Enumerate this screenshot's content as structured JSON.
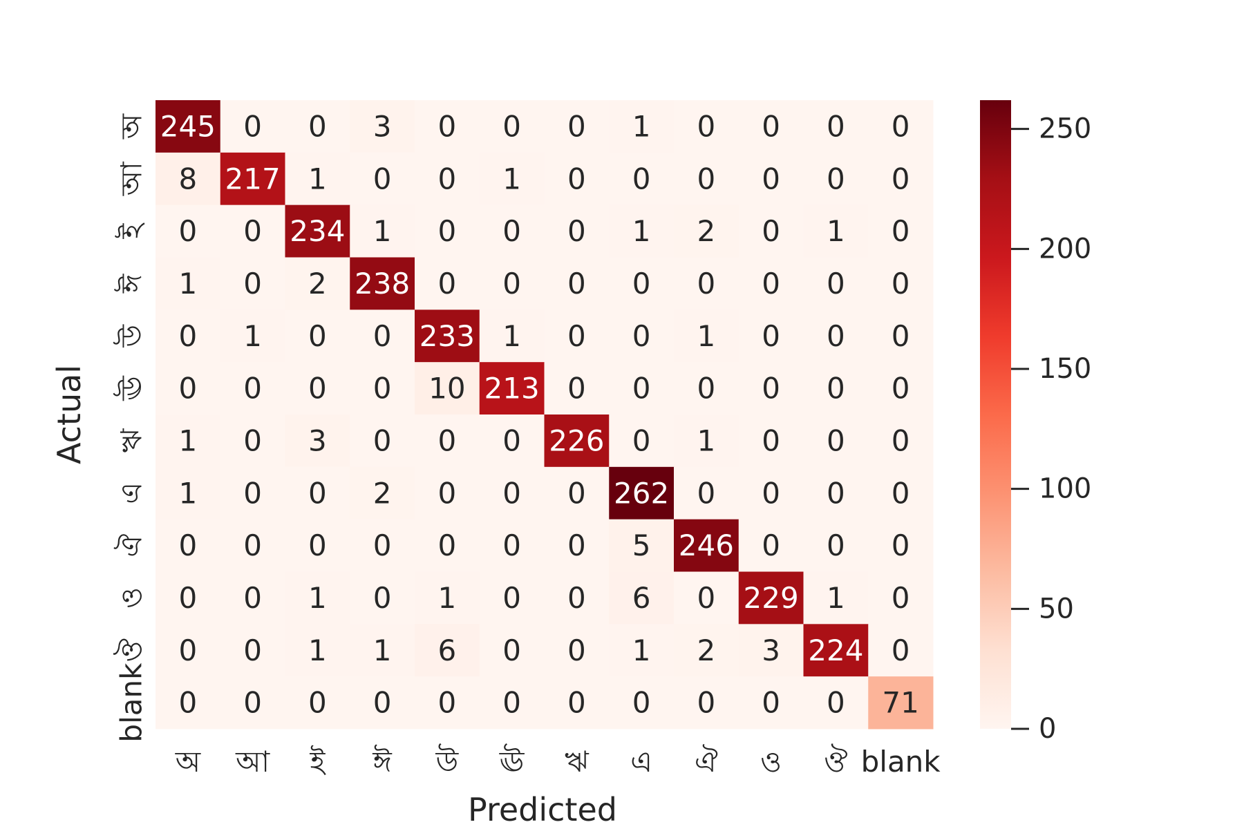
{
  "chart_data": {
    "type": "heatmap",
    "title": "",
    "xlabel": "Predicted",
    "ylabel": "Actual",
    "x_categories": [
      "অ",
      "আ",
      "ই",
      "ঈ",
      "উ",
      "ঊ",
      "ঋ",
      "এ",
      "ঐ",
      "ও",
      "ঔ",
      "blank"
    ],
    "y_categories": [
      "অ",
      "আ",
      "ই",
      "ঈ",
      "উ",
      "ঊ",
      "ঋ",
      "এ",
      "ঐ",
      "ও",
      "ঔ",
      "blank"
    ],
    "values": [
      [
        245,
        0,
        0,
        3,
        0,
        0,
        0,
        1,
        0,
        0,
        0,
        0
      ],
      [
        8,
        217,
        1,
        0,
        0,
        1,
        0,
        0,
        0,
        0,
        0,
        0
      ],
      [
        0,
        0,
        234,
        1,
        0,
        0,
        0,
        1,
        2,
        0,
        1,
        0
      ],
      [
        1,
        0,
        2,
        238,
        0,
        0,
        0,
        0,
        0,
        0,
        0,
        0
      ],
      [
        0,
        1,
        0,
        0,
        233,
        1,
        0,
        0,
        1,
        0,
        0,
        0
      ],
      [
        0,
        0,
        0,
        0,
        10,
        213,
        0,
        0,
        0,
        0,
        0,
        0
      ],
      [
        1,
        0,
        3,
        0,
        0,
        0,
        226,
        0,
        1,
        0,
        0,
        0
      ],
      [
        1,
        0,
        0,
        2,
        0,
        0,
        0,
        262,
        0,
        0,
        0,
        0
      ],
      [
        0,
        0,
        0,
        0,
        0,
        0,
        0,
        5,
        246,
        0,
        0,
        0
      ],
      [
        0,
        0,
        1,
        0,
        1,
        0,
        0,
        6,
        0,
        229,
        1,
        0
      ],
      [
        0,
        0,
        1,
        1,
        6,
        0,
        0,
        1,
        2,
        3,
        224,
        0
      ],
      [
        0,
        0,
        0,
        0,
        0,
        0,
        0,
        0,
        0,
        0,
        0,
        71
      ]
    ],
    "colormap": "Reds",
    "color_stops": [
      "#fff5f0",
      "#fee0d2",
      "#fcbba1",
      "#fc9272",
      "#fb6a4a",
      "#ef3b2c",
      "#cb181d",
      "#a50f15",
      "#67000d"
    ],
    "vmin": 0,
    "vmax": 262,
    "colorbar_ticks": [
      0,
      50,
      100,
      150,
      200,
      250
    ],
    "annotated": true,
    "grid": false
  }
}
